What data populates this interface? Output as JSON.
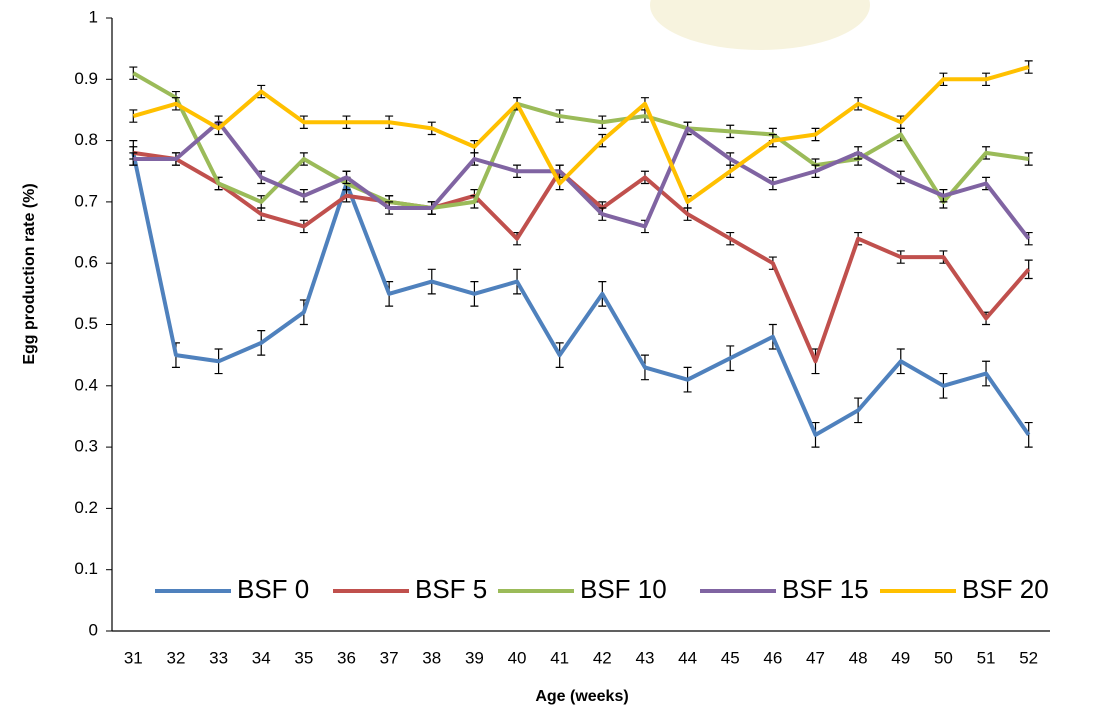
{
  "chart_data": {
    "type": "line",
    "y_label": "Egg production rate (%)",
    "x_label": "Age (weeks)",
    "categories": [
      31,
      32,
      33,
      34,
      35,
      36,
      37,
      38,
      39,
      40,
      41,
      42,
      43,
      44,
      45,
      46,
      47,
      48,
      49,
      50,
      51,
      52
    ],
    "ylim": [
      0,
      1
    ],
    "yticks": [
      0,
      0.1,
      0.2,
      0.3,
      0.4,
      0.5,
      0.6,
      0.7,
      0.8,
      0.9,
      1
    ],
    "grid": false,
    "legend": "bottom",
    "series": [
      {
        "name": "BSF 0",
        "color": "#4f81bd",
        "values": [
          0.78,
          0.45,
          0.44,
          0.47,
          0.52,
          0.73,
          0.55,
          0.57,
          0.55,
          0.57,
          0.45,
          0.55,
          0.43,
          0.41,
          0.445,
          0.48,
          0.32,
          0.36,
          0.44,
          0.4,
          0.42,
          0.32
        ],
        "errors": [
          0.02,
          0.02,
          0.02,
          0.02,
          0.02,
          0.02,
          0.02,
          0.02,
          0.02,
          0.02,
          0.02,
          0.02,
          0.02,
          0.02,
          0.02,
          0.02,
          0.02,
          0.02,
          0.02,
          0.02,
          0.02,
          0.02
        ]
      },
      {
        "name": "BSF 5",
        "color": "#c0504d",
        "values": [
          0.78,
          0.77,
          0.73,
          0.68,
          0.66,
          0.71,
          0.7,
          0.69,
          0.71,
          0.64,
          0.75,
          0.69,
          0.74,
          0.68,
          0.64,
          0.6,
          0.44,
          0.64,
          0.61,
          0.61,
          0.51,
          0.59
        ],
        "errors": [
          0.01,
          0.01,
          0.01,
          0.01,
          0.01,
          0.01,
          0.01,
          0.01,
          0.01,
          0.01,
          0.01,
          0.01,
          0.01,
          0.01,
          0.01,
          0.01,
          0.02,
          0.01,
          0.01,
          0.01,
          0.01,
          0.015
        ]
      },
      {
        "name": "BSF 10",
        "color": "#9bbb59",
        "values": [
          0.91,
          0.87,
          0.73,
          0.7,
          0.77,
          0.73,
          0.7,
          0.69,
          0.7,
          0.86,
          0.84,
          0.83,
          0.84,
          0.82,
          0.815,
          0.81,
          0.76,
          0.77,
          0.81,
          0.7,
          0.78,
          0.77
        ],
        "errors": [
          0.01,
          0.01,
          0.01,
          0.01,
          0.01,
          0.01,
          0.01,
          0.01,
          0.01,
          0.01,
          0.01,
          0.01,
          0.01,
          0.01,
          0.01,
          0.01,
          0.01,
          0.01,
          0.01,
          0.01,
          0.01,
          0.01
        ]
      },
      {
        "name": "BSF 15",
        "color": "#8064a2",
        "values": [
          0.77,
          0.77,
          0.83,
          0.74,
          0.71,
          0.74,
          0.69,
          0.69,
          0.77,
          0.75,
          0.75,
          0.68,
          0.66,
          0.82,
          0.77,
          0.73,
          0.75,
          0.78,
          0.74,
          0.71,
          0.73,
          0.64
        ],
        "errors": [
          0.01,
          0.01,
          0.01,
          0.01,
          0.01,
          0.01,
          0.01,
          0.01,
          0.01,
          0.01,
          0.01,
          0.01,
          0.01,
          0.01,
          0.01,
          0.01,
          0.01,
          0.01,
          0.01,
          0.01,
          0.01,
          0.01
        ]
      },
      {
        "name": "BSF 20",
        "color": "#ffc000",
        "values": [
          0.84,
          0.86,
          0.82,
          0.88,
          0.83,
          0.83,
          0.83,
          0.82,
          0.79,
          0.86,
          0.73,
          0.8,
          0.86,
          0.7,
          0.75,
          0.8,
          0.81,
          0.86,
          0.83,
          0.9,
          0.9,
          0.92
        ],
        "errors": [
          0.01,
          0.01,
          0.01,
          0.01,
          0.01,
          0.01,
          0.01,
          0.01,
          0.01,
          0.01,
          0.01,
          0.01,
          0.01,
          0.01,
          0.01,
          0.01,
          0.01,
          0.01,
          0.01,
          0.01,
          0.01,
          0.01
        ]
      }
    ]
  }
}
